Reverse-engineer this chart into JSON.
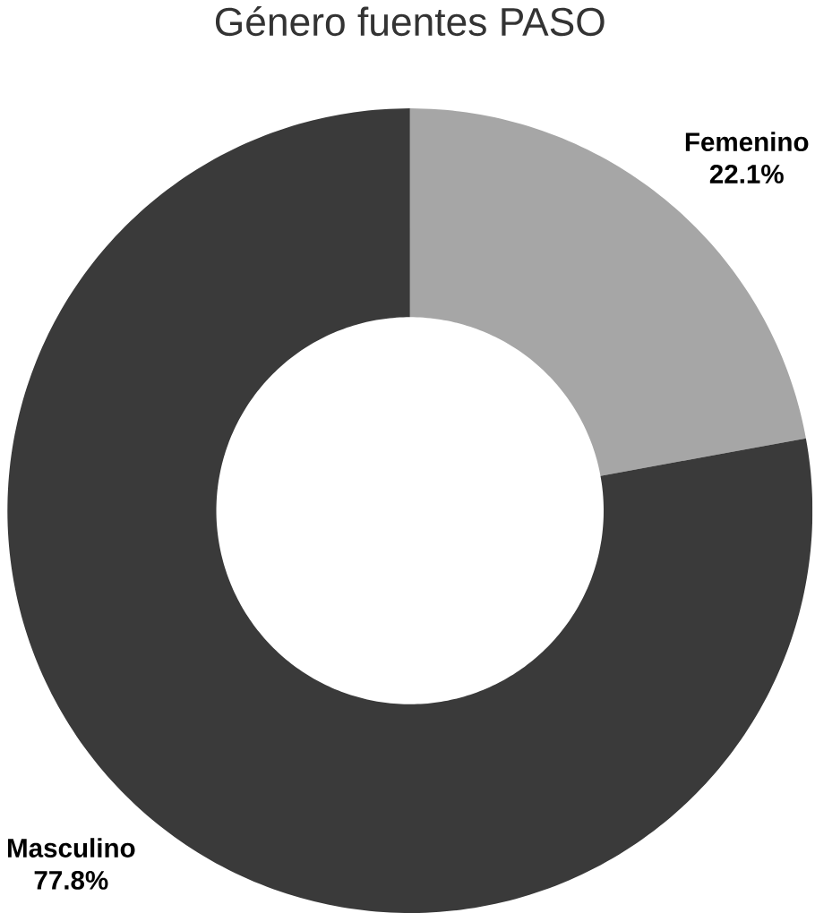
{
  "chart_data": {
    "type": "donut",
    "title": "Género fuentes PASO",
    "categories": [
      "Femenino",
      "Masculino"
    ],
    "values": [
      22.1,
      77.8
    ],
    "colors": [
      "#a6a6a6",
      "#3a3a3a"
    ],
    "value_labels": [
      "22.1%",
      "77.8%"
    ]
  }
}
